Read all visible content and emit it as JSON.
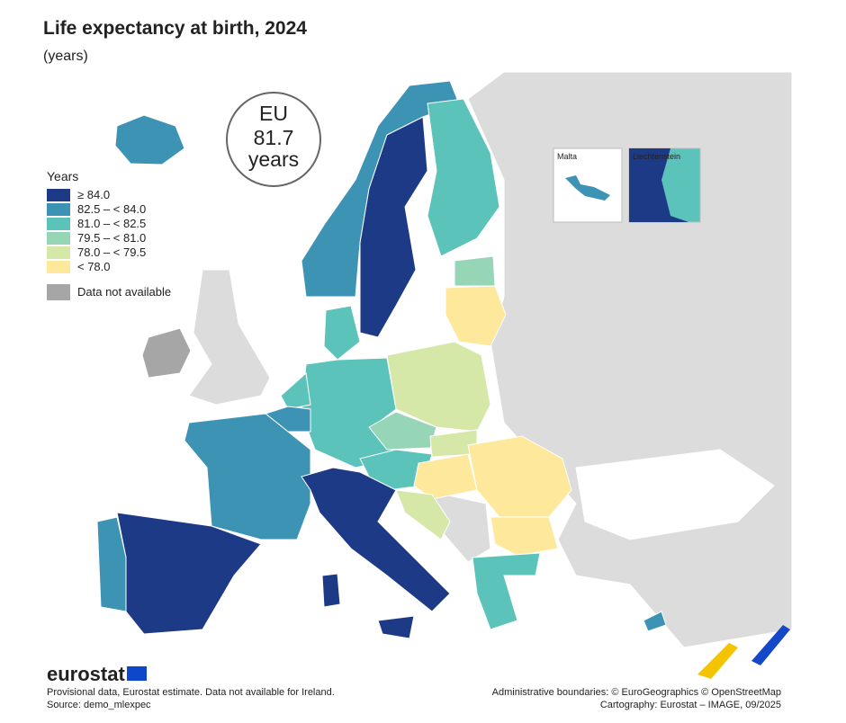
{
  "header": {
    "title": "Life expectancy at birth, 2024",
    "subtitle": "(years)"
  },
  "eu_badge": {
    "label": "EU",
    "value": 81.7,
    "unit": "years"
  },
  "legend": {
    "title": "Years",
    "classes": [
      {
        "label": "≥ 84.0",
        "color": "#1d3a87"
      },
      {
        "label": "82.5 – < 84.0",
        "color": "#3d93b4"
      },
      {
        "label": "81.0 – < 82.5",
        "color": "#5cc3bb"
      },
      {
        "label": "79.5 – < 81.0",
        "color": "#96d5b6"
      },
      {
        "label": "78.0 – < 79.5",
        "color": "#d5e8a8"
      },
      {
        "label": "< 78.0",
        "color": "#fde89c"
      }
    ],
    "no_data": {
      "label": "Data not available",
      "color": "#a6a6a6"
    }
  },
  "insets": [
    {
      "label": "Malta"
    },
    {
      "label": "Liechtenstein"
    }
  ],
  "footer": {
    "brand": "eurostat",
    "note": "Provisional data, Eurostat estimate. Data not available for Ireland.",
    "source": "Source: demo_mlexpec",
    "boundaries": "Administrative boundaries: © EuroGeographics © OpenStreetMap",
    "cartography": "Cartography: Eurostat – IMAGE, 09/2025"
  }
}
